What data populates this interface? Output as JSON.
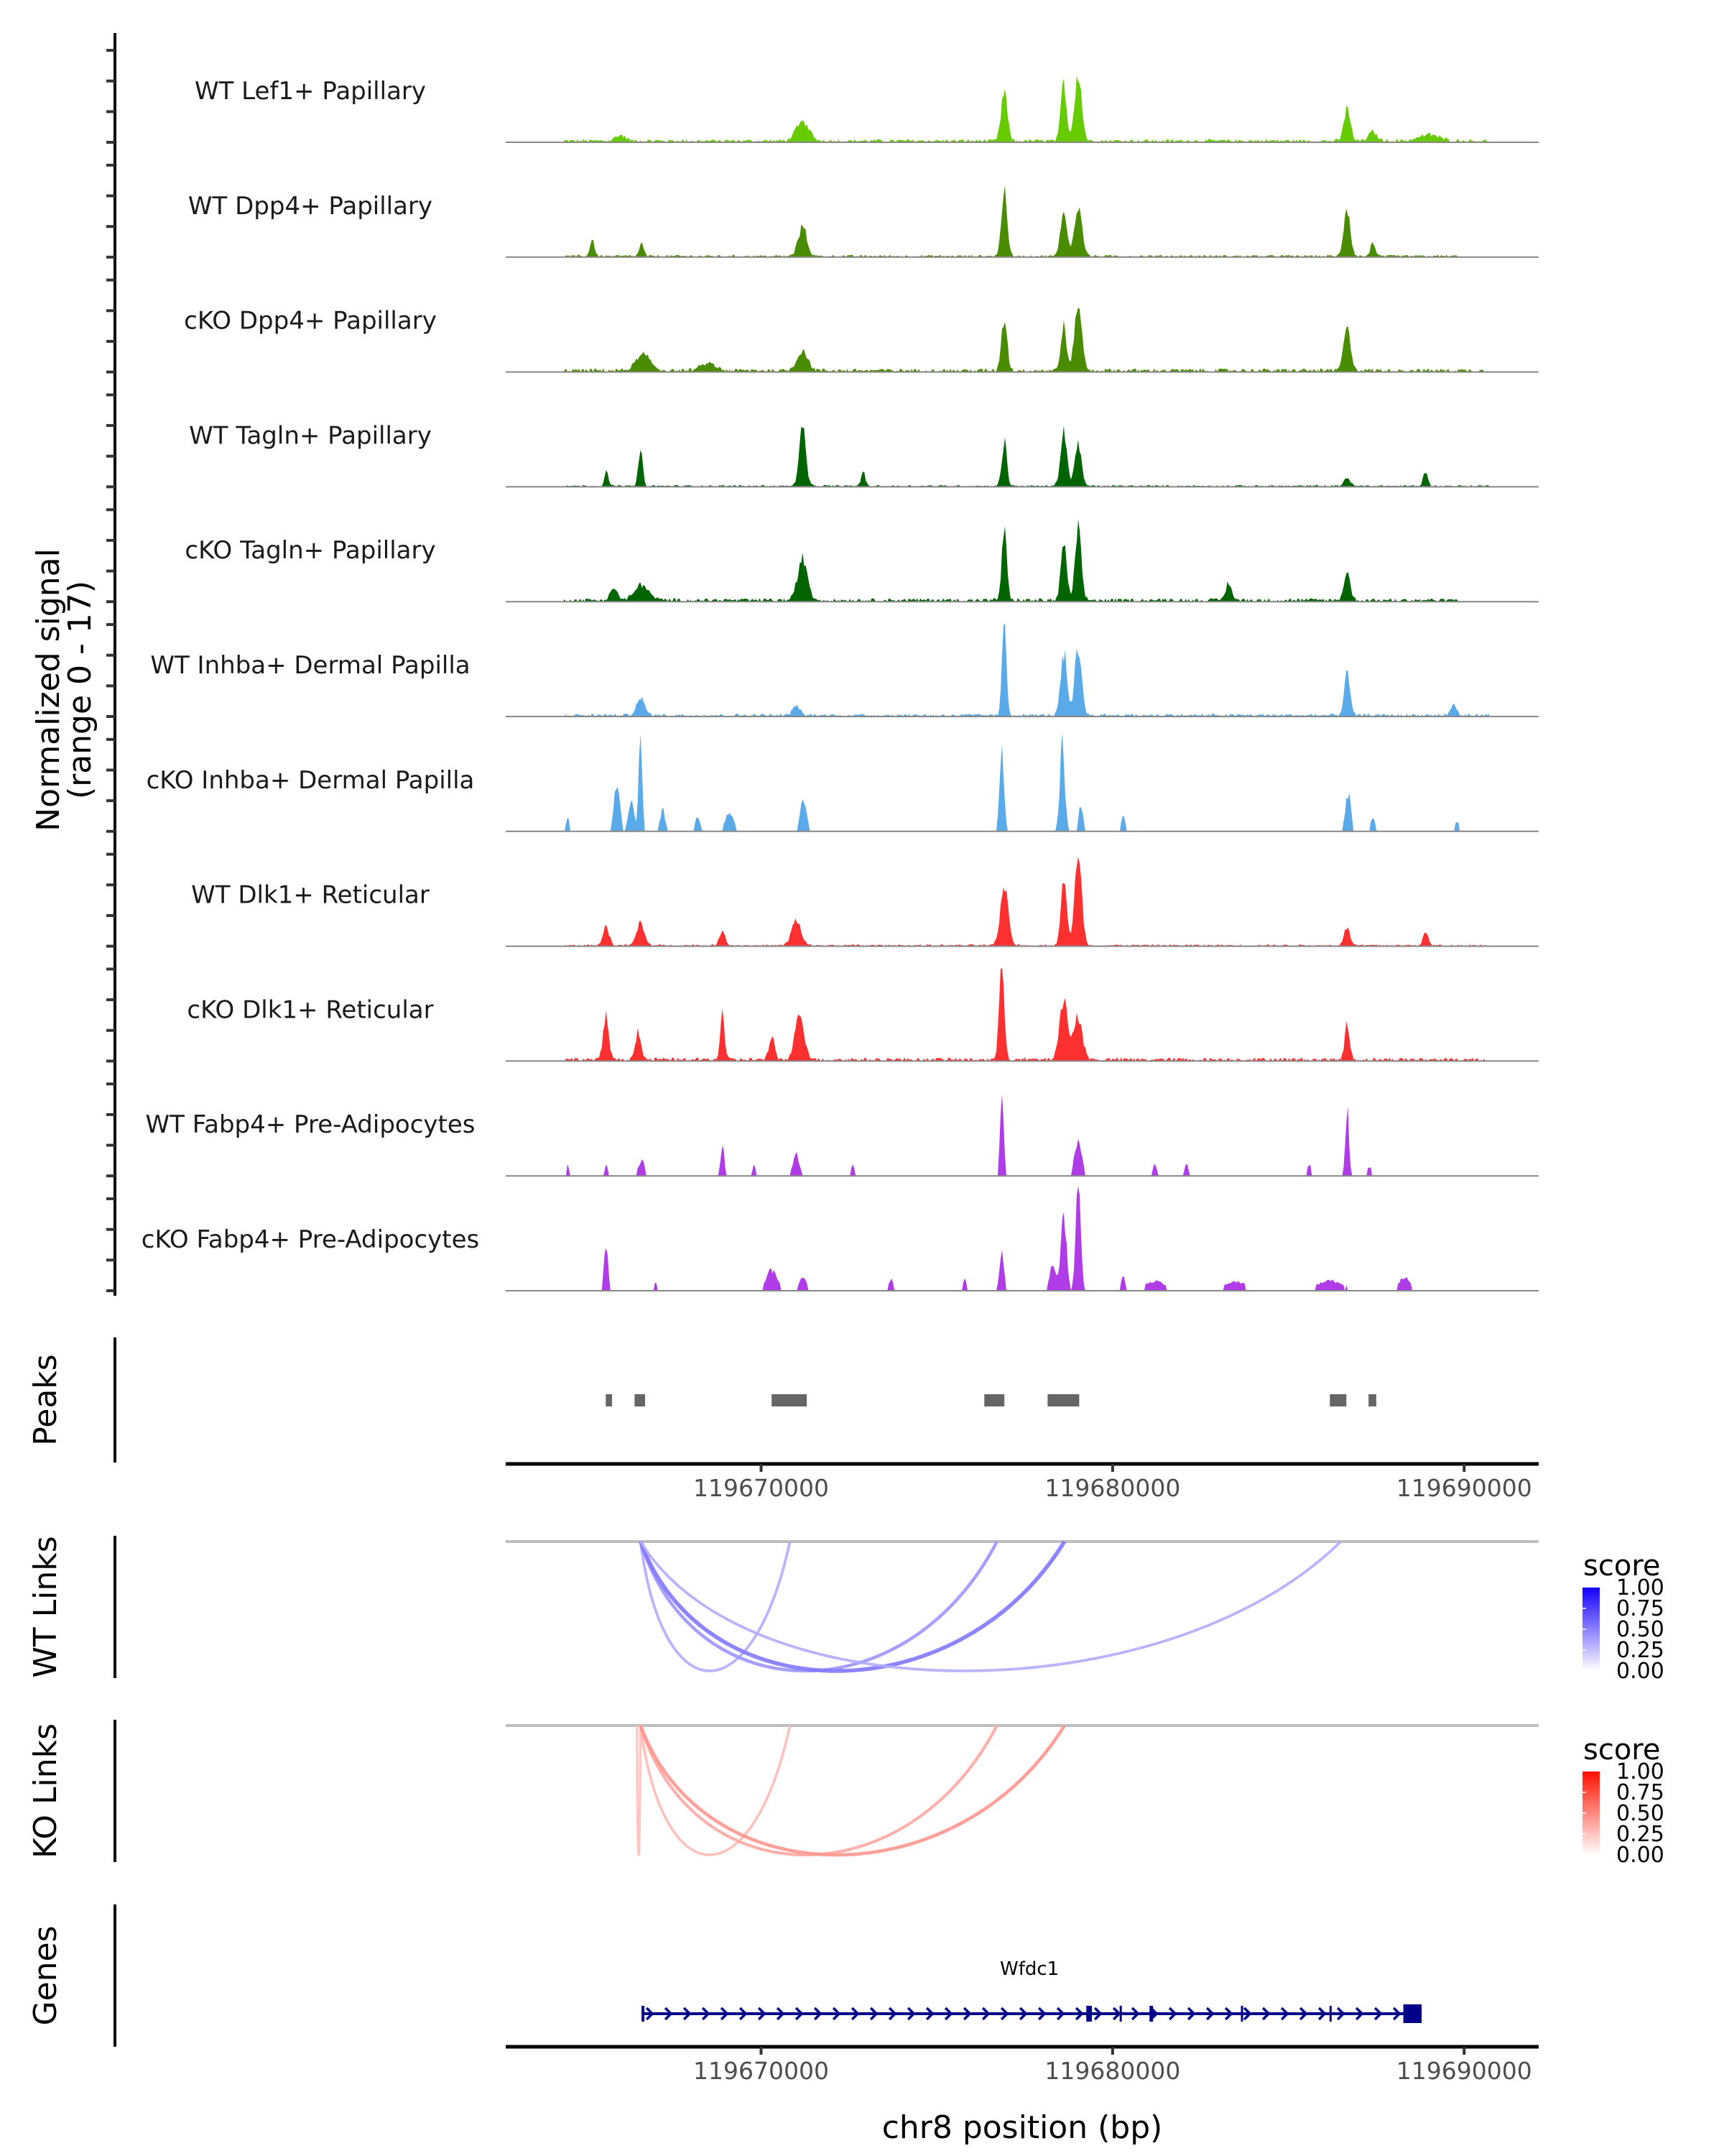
{
  "chart_data": {
    "type": "area",
    "title": "",
    "ylabel": "Normalized signal",
    "ylabel_sub": "(range 0 - 17)",
    "xlabel": "chr8 position (bp)",
    "ylim": [
      0,
      17
    ],
    "xlim": [
      119662735,
      119692120
    ],
    "x_ticks": [
      119670000,
      119680000,
      119690000
    ],
    "x_tick_labels": [
      "119670000",
      "119680000",
      "119690000"
    ],
    "y_ticks_per_track": [
      0,
      5,
      10,
      15
    ],
    "tracks": [
      {
        "name": "WT Lef1+ Papillary",
        "color": "#66cc00",
        "noise": 0.5,
        "span": [
          119664400,
          119690700
        ],
        "peaks": [
          [
            119676920,
            90,
            7.7
          ],
          [
            119678610,
            80,
            9.3
          ],
          [
            119679020,
            100,
            10.9
          ],
          [
            119671180,
            180,
            3.2
          ],
          [
            119686670,
            90,
            5.5
          ],
          [
            119687400,
            120,
            1.5
          ],
          [
            119666000,
            150,
            0.9
          ],
          [
            119689000,
            300,
            1.0
          ]
        ]
      },
      {
        "name": "WT Dpp4+ Papillary",
        "color": "#4a8c00",
        "noise": 0.35,
        "span": [
          119664400,
          119689800
        ],
        "peaks": [
          [
            119676920,
            80,
            10.9
          ],
          [
            119678610,
            90,
            7.0
          ],
          [
            119679020,
            110,
            8.4
          ],
          [
            119671180,
            120,
            4.8
          ],
          [
            119686670,
            90,
            7.3
          ],
          [
            119665200,
            60,
            2.8
          ],
          [
            119666600,
            60,
            2.0
          ],
          [
            119687400,
            60,
            2.3
          ]
        ]
      },
      {
        "name": "cKO Dpp4+ Papillary",
        "color": "#4a8c00",
        "noise": 0.55,
        "span": [
          119664400,
          119690800
        ],
        "peaks": [
          [
            119676920,
            80,
            8.4
          ],
          [
            119678610,
            80,
            7.3
          ],
          [
            119679020,
            100,
            11.0
          ],
          [
            119671180,
            150,
            3.2
          ],
          [
            119686670,
            100,
            6.8
          ],
          [
            119666650,
            200,
            2.7
          ],
          [
            119668500,
            200,
            1.2
          ]
        ]
      },
      {
        "name": "WT Tagln+ Papillary",
        "color": "#006400",
        "noise": 0.3,
        "span": [
          119664400,
          119690700
        ],
        "peaks": [
          [
            119676920,
            70,
            7.3
          ],
          [
            119678610,
            90,
            8.6
          ],
          [
            119679020,
            90,
            7.3
          ],
          [
            119671180,
            90,
            10.5
          ],
          [
            119666570,
            60,
            5.9
          ],
          [
            119665600,
            50,
            2.5
          ],
          [
            119672900,
            60,
            2.2
          ],
          [
            119686670,
            80,
            1.5
          ],
          [
            119688900,
            60,
            2.5
          ]
        ]
      },
      {
        "name": "cKO Tagln+ Papillary",
        "color": "#006400",
        "noise": 0.55,
        "span": [
          119664400,
          119689800
        ],
        "peaks": [
          [
            119676920,
            70,
            11.2
          ],
          [
            119678610,
            80,
            9.5
          ],
          [
            119679020,
            90,
            11.2
          ],
          [
            119671180,
            140,
            6.6
          ],
          [
            119686670,
            90,
            4.1
          ],
          [
            119666600,
            200,
            2.5
          ],
          [
            119665800,
            100,
            2.0
          ],
          [
            119683300,
            90,
            2.6
          ]
        ]
      },
      {
        "name": "WT Inhba+ Dermal Papilla",
        "color": "#5aaaea",
        "noise": 0.45,
        "span": [
          119664400,
          119690700
        ],
        "peaks": [
          [
            119676920,
            60,
            16.1
          ],
          [
            119678610,
            90,
            10.2
          ],
          [
            119679020,
            100,
            10.7
          ],
          [
            119686670,
            80,
            6.8
          ],
          [
            119666570,
            120,
            2.7
          ],
          [
            119671000,
            100,
            1.6
          ],
          [
            119689700,
            80,
            1.8
          ]
        ]
      },
      {
        "name": "cKO Inhba+ Dermal Papilla",
        "color": "#5aaaea",
        "noise": 0.0,
        "span": [
          119664400,
          119690700
        ],
        "peaks": [
          [
            119676850,
            60,
            14.1
          ],
          [
            119678570,
            70,
            13.9
          ],
          [
            119666570,
            50,
            16.1
          ],
          [
            119665900,
            80,
            8.2
          ],
          [
            119666300,
            80,
            5.0
          ],
          [
            119667200,
            70,
            3.5
          ],
          [
            119671200,
            90,
            4.8
          ],
          [
            119686700,
            80,
            6.1
          ],
          [
            119669100,
            120,
            3.0
          ],
          [
            119679100,
            60,
            4.5
          ],
          [
            119664500,
            40,
            2.5
          ],
          [
            119668200,
            70,
            2.5
          ],
          [
            119680300,
            60,
            2.3
          ],
          [
            119687400,
            70,
            2.0
          ],
          [
            119689800,
            60,
            1.8
          ]
        ]
      },
      {
        "name": "WT Dlk1+ Reticular",
        "color": "#ff3030",
        "noise": 0.3,
        "span": [
          119664400,
          119690800
        ],
        "peaks": [
          [
            119676920,
            110,
            10.0
          ],
          [
            119678610,
            80,
            11.4
          ],
          [
            119679020,
            100,
            13.9
          ],
          [
            119671000,
            130,
            4.1
          ],
          [
            119665590,
            90,
            3.0
          ],
          [
            119666570,
            110,
            3.6
          ],
          [
            119668900,
            80,
            2.5
          ],
          [
            119686670,
            90,
            2.8
          ],
          [
            119688900,
            70,
            2.3
          ]
        ]
      },
      {
        "name": "cKO Dlk1+ Reticular",
        "color": "#ff3030",
        "noise": 0.55,
        "span": [
          119664400,
          119690600
        ],
        "peaks": [
          [
            119676850,
            70,
            16.6
          ],
          [
            119678610,
            120,
            9.3
          ],
          [
            119679020,
            120,
            7.0
          ],
          [
            119665590,
            80,
            6.8
          ],
          [
            119668900,
            60,
            7.3
          ],
          [
            119671100,
            130,
            7.3
          ],
          [
            119686670,
            70,
            5.9
          ],
          [
            119666500,
            80,
            4.5
          ],
          [
            119670300,
            80,
            3.5
          ]
        ]
      },
      {
        "name": "WT Fabp4+ Pre-Adipocytes",
        "color": "#b03ce8",
        "noise": 0.0,
        "span": [
          119664400,
          119688500
        ],
        "peaks": [
          [
            119676850,
            50,
            14.8
          ],
          [
            119679020,
            100,
            5.9
          ],
          [
            119686670,
            50,
            11.1
          ],
          [
            119668900,
            50,
            5.0
          ],
          [
            119671000,
            90,
            3.6
          ],
          [
            119666600,
            90,
            2.5
          ],
          [
            119664500,
            40,
            1.8
          ],
          [
            119665600,
            40,
            1.8
          ],
          [
            119669800,
            40,
            2.0
          ],
          [
            119672600,
            50,
            1.8
          ],
          [
            119681200,
            60,
            1.8
          ],
          [
            119682100,
            50,
            2.0
          ],
          [
            119685600,
            60,
            1.8
          ],
          [
            119687300,
            60,
            1.6
          ]
        ]
      },
      {
        "name": "cKO Fabp4+ Pre-Adipocytes",
        "color": "#b03ce8",
        "noise": 0.0,
        "span": [
          119664400,
          119689000
        ],
        "peaks": [
          [
            119679020,
            70,
            17.0
          ],
          [
            119678610,
            80,
            12.0
          ],
          [
            119676850,
            60,
            6.8
          ],
          [
            119665590,
            60,
            6.8
          ],
          [
            119678300,
            100,
            4.0
          ],
          [
            119670300,
            160,
            3.3
          ],
          [
            119671200,
            100,
            2.5
          ],
          [
            119673700,
            60,
            2.0
          ],
          [
            119675800,
            50,
            2.0
          ],
          [
            119680300,
            60,
            2.2
          ],
          [
            119681200,
            300,
            1.5
          ],
          [
            119683500,
            300,
            1.5
          ],
          [
            119686200,
            400,
            1.6
          ],
          [
            119688300,
            150,
            2.2
          ],
          [
            119667000,
            60,
            1.5
          ]
        ]
      }
    ],
    "peaks_track": {
      "label": "Peaks",
      "color": "#666666",
      "regions": [
        [
          119665580,
          119665760
        ],
        [
          119666400,
          119666700
        ],
        [
          119670300,
          119671300
        ],
        [
          119676350,
          119676920
        ],
        [
          119678150,
          119679050
        ],
        [
          119686180,
          119686650
        ],
        [
          119687280,
          119687500
        ]
      ]
    },
    "links": [
      {
        "label": "WT Links",
        "palette": "blue",
        "legend": {
          "title": "score",
          "ticks": [
            "1.00",
            "0.75",
            "0.50",
            "0.25",
            "0.00"
          ],
          "low": "#ffffff",
          "high": "#1400ff"
        },
        "items": [
          {
            "start": 119666570,
            "end": 119670820,
            "score": 0.3
          },
          {
            "start": 119666570,
            "end": 119676710,
            "score": 0.42
          },
          {
            "start": 119666570,
            "end": 119678630,
            "score": 0.58
          },
          {
            "start": 119666570,
            "end": 119686490,
            "score": 0.3
          }
        ]
      },
      {
        "label": "KO Links",
        "palette": "red",
        "legend": {
          "title": "score",
          "ticks": [
            "1.00",
            "0.75",
            "0.50",
            "0.25",
            "0.00"
          ],
          "low": "#ffffff",
          "high": "#ff1100"
        },
        "items": [
          {
            "start": 119666470,
            "end": 119666570,
            "score": 0.22
          },
          {
            "start": 119666570,
            "end": 119670820,
            "score": 0.26
          },
          {
            "start": 119666570,
            "end": 119676710,
            "score": 0.36
          },
          {
            "start": 119666570,
            "end": 119678630,
            "score": 0.45
          }
        ]
      }
    ],
    "genes_track": {
      "label": "Genes",
      "color": "#00008b",
      "genes": [
        {
          "name": "Wfdc1",
          "strand": "+",
          "start": 119666600,
          "end": 119688790,
          "exons": [
            [
              119666600,
              119666680
            ],
            [
              119679250,
              119679410
            ],
            [
              119680200,
              119680260
            ],
            [
              119681050,
              119681150
            ],
            [
              119683650,
              119683690
            ],
            [
              119686170,
              119686210
            ],
            [
              119688270,
              119688790
            ]
          ]
        }
      ]
    }
  }
}
